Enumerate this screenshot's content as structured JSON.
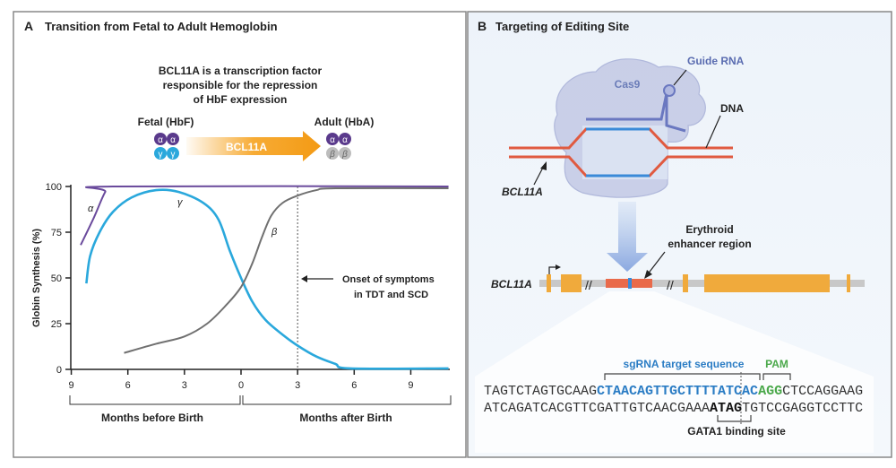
{
  "panel_a": {
    "letter": "A",
    "title": "Transition from Fetal to Adult Hemoglobin",
    "caption": [
      "BCL11A is a transcription factor",
      "responsible for the repression",
      "of HbF expression"
    ],
    "fetal_label": "Fetal (HbF)",
    "adult_label": "Adult (HbA)",
    "arrow_label": "BCL11A",
    "fetal_subunits": [
      "α",
      "α",
      "γ",
      "γ"
    ],
    "adult_subunits": [
      "α",
      "α",
      "β",
      "β"
    ],
    "annotation": [
      "Onset of symptoms",
      "in TDT and SCD"
    ],
    "bracket_before": "Months before Birth",
    "bracket_after": "Months after Birth"
  },
  "chart_data": {
    "type": "line",
    "ylabel": "Globin Synthesis (%)",
    "ylim": [
      0,
      100
    ],
    "yticks": [
      "0",
      "25",
      "50",
      "75",
      "100"
    ],
    "xlim": [
      -9,
      11
    ],
    "xtick_values": [
      -9,
      -6,
      -3,
      0,
      3,
      6,
      9
    ],
    "xtick_labels": [
      "9",
      "6",
      "3",
      "0",
      "3",
      "6",
      "9"
    ],
    "vertical_marker_x": 3,
    "series": [
      {
        "name": "α",
        "color": "#6a4a9c",
        "points": [
          [
            -8.5,
            68
          ],
          [
            -7.8,
            83
          ],
          [
            -7.2,
            97
          ],
          [
            -6.8,
            100
          ],
          [
            11,
            100
          ]
        ]
      },
      {
        "name": "γ",
        "color": "#2aa8dc",
        "points": [
          [
            -8.2,
            47
          ],
          [
            -8,
            62
          ],
          [
            -7.5,
            75
          ],
          [
            -6.8,
            86
          ],
          [
            -5.8,
            94
          ],
          [
            -4.5,
            98
          ],
          [
            -3.3,
            97
          ],
          [
            -2,
            91
          ],
          [
            -1.2,
            82
          ],
          [
            -0.6,
            65
          ],
          [
            0,
            50
          ],
          [
            0.6,
            37
          ],
          [
            1.3,
            27
          ],
          [
            2.2,
            19
          ],
          [
            3,
            13
          ],
          [
            4,
            7
          ],
          [
            5,
            3
          ],
          [
            5.8,
            0.5
          ],
          [
            11,
            0.5
          ]
        ]
      },
      {
        "name": "β",
        "color": "#707070",
        "points": [
          [
            -6.2,
            9
          ],
          [
            -4.5,
            14
          ],
          [
            -3,
            18
          ],
          [
            -1.8,
            25
          ],
          [
            -0.8,
            35
          ],
          [
            0,
            45
          ],
          [
            0.6,
            58
          ],
          [
            1.1,
            72
          ],
          [
            1.6,
            84
          ],
          [
            2.2,
            91
          ],
          [
            3,
            95
          ],
          [
            4,
            98
          ],
          [
            5,
            99
          ],
          [
            11,
            99
          ]
        ]
      }
    ]
  },
  "panel_b": {
    "letter": "B",
    "title": "Targeting of Editing Site",
    "cas9": "Cas9",
    "guide_rna": "Guide RNA",
    "dna": "DNA",
    "gene_top": "BCL11A",
    "gene_bottom": "BCL11A",
    "enhancer": [
      "Erythroid",
      "enhancer region"
    ],
    "sgrna_label": "sgRNA target sequence",
    "pam_label": "PAM",
    "gata1_label": "GATA1 binding site",
    "seq_top": [
      "TAGTCTAGTGCAAG",
      "CTAACAGTTGCTTTTATCAC",
      "AGG",
      "CTCCAGGAAG"
    ],
    "seq_bottom": [
      "ATCAGATCACGTTCGATTGTCAACGAAA",
      "ATAG",
      "TGTCCGAGGTCCTTC"
    ],
    "colors": {
      "sgrna": "#2a7cc4",
      "pam": "#4aa84a",
      "exon": "#f0aa3c",
      "dna": "#e05a40"
    }
  }
}
